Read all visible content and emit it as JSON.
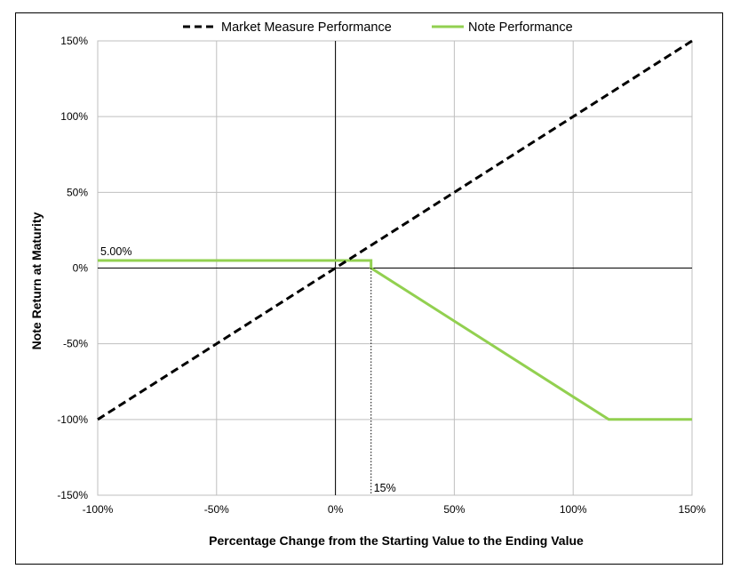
{
  "chart_data": {
    "type": "line",
    "xlabel": "Percentage Change from the Starting Value to the Ending Value",
    "ylabel": "Note Return at Maturity",
    "xlim": [
      -100,
      150
    ],
    "ylim": [
      -150,
      150
    ],
    "x_ticks": [
      -100,
      -50,
      0,
      50,
      100,
      150
    ],
    "y_ticks": [
      -150,
      -100,
      -50,
      0,
      50,
      100,
      150
    ],
    "x_tick_labels": [
      "-100%",
      "-50%",
      "0%",
      "50%",
      "100%",
      "150%"
    ],
    "y_tick_labels": [
      "-150%",
      "-100%",
      "-50%",
      "0%",
      "50%",
      "100%",
      "150%"
    ],
    "grid": true,
    "legend_position": "top",
    "series": [
      {
        "name": "Market Measure Performance",
        "style": "dashed",
        "color": "#000000",
        "x": [
          -100,
          150
        ],
        "y": [
          -100,
          150
        ]
      },
      {
        "name": "Note Performance",
        "style": "solid",
        "color": "#92D050",
        "x": [
          -100,
          15,
          15,
          115,
          150
        ],
        "y": [
          5,
          5,
          0,
          -100,
          -100
        ]
      }
    ],
    "annotations": {
      "cap_label": "5.00%",
      "cap_value": 5,
      "threshold_label": "15%",
      "threshold_value": 15
    }
  }
}
